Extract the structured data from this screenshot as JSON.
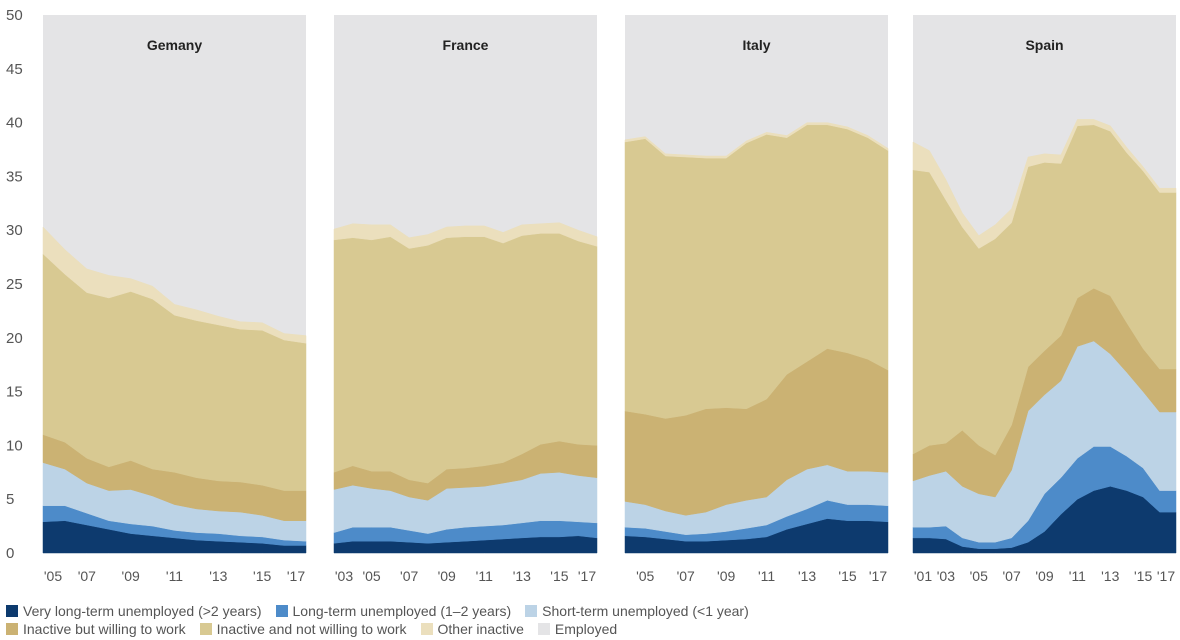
{
  "chart_data": {
    "type": "area",
    "stacked": true,
    "ylim": [
      0,
      50
    ],
    "yticks": [
      0,
      5,
      10,
      15,
      20,
      25,
      30,
      35,
      40,
      45,
      50
    ],
    "colors": {
      "very_long_term_unemployed": "#0d3a6e",
      "long_term_unemployed": "#4d8bc9",
      "short_term_unemployed": "#bcd3e6",
      "inactive_willing": "#cbb273",
      "inactive_not_willing": "#d8c992",
      "other_inactive": "#ebdfbd",
      "employed": "#e4e4e6"
    },
    "legend": [
      {
        "key": "very_long_term_unemployed",
        "label": "Very long-term unemployed (>2 years)"
      },
      {
        "key": "long_term_unemployed",
        "label": "Long-term unemployed (1–2 years)"
      },
      {
        "key": "short_term_unemployed",
        "label": "Short-term unemployed (<1 year)"
      },
      {
        "key": "inactive_willing",
        "label": "Inactive but willing to work"
      },
      {
        "key": "inactive_not_willing",
        "label": "Inactive and not willing to work"
      },
      {
        "key": "other_inactive",
        "label": "Other inactive"
      },
      {
        "key": "employed",
        "label": "Employed"
      }
    ],
    "panels": [
      {
        "title": "Gemany",
        "x": [
          2005,
          2006,
          2007,
          2008,
          2009,
          2010,
          2011,
          2012,
          2013,
          2014,
          2015,
          2016,
          2017
        ],
        "xtick_labels": [
          "'05",
          "'07",
          "'09",
          "'11",
          "'13",
          "'15",
          "'17"
        ],
        "xtick_values": [
          2005,
          2007,
          2009,
          2011,
          2013,
          2015,
          2017
        ],
        "series": {
          "very_long_term_unemployed": [
            2.9,
            3.0,
            2.6,
            2.2,
            1.8,
            1.6,
            1.4,
            1.2,
            1.1,
            1.0,
            0.9,
            0.7,
            0.7
          ],
          "long_term_unemployed": [
            1.5,
            1.4,
            1.1,
            0.8,
            0.9,
            0.9,
            0.7,
            0.7,
            0.7,
            0.6,
            0.6,
            0.5,
            0.4
          ],
          "short_term_unemployed": [
            4.0,
            3.4,
            2.8,
            2.8,
            3.2,
            2.8,
            2.4,
            2.2,
            2.1,
            2.2,
            2.0,
            1.8,
            1.9
          ],
          "inactive_willing": [
            2.6,
            2.5,
            2.3,
            2.2,
            2.7,
            2.5,
            3.0,
            2.9,
            2.8,
            2.8,
            2.8,
            2.8,
            2.8
          ],
          "inactive_not_willing": [
            16.8,
            15.6,
            15.4,
            15.7,
            15.7,
            15.8,
            14.6,
            14.6,
            14.5,
            14.2,
            14.4,
            14.0,
            13.7
          ],
          "other_inactive": [
            2.5,
            2.3,
            2.2,
            2.1,
            1.2,
            1.2,
            1.0,
            1.0,
            0.8,
            0.7,
            0.7,
            0.6,
            0.7
          ]
        }
      },
      {
        "title": "France",
        "x": [
          2003,
          2004,
          2005,
          2006,
          2007,
          2008,
          2009,
          2010,
          2011,
          2012,
          2013,
          2014,
          2015,
          2016,
          2017
        ],
        "xtick_labels": [
          "'03",
          "'05",
          "'07",
          "'09",
          "'11",
          "'13",
          "'15",
          "'17"
        ],
        "xtick_values": [
          2003,
          2005,
          2007,
          2009,
          2011,
          2013,
          2015,
          2017
        ],
        "series": {
          "very_long_term_unemployed": [
            0.9,
            1.1,
            1.1,
            1.1,
            1.0,
            0.9,
            1.0,
            1.1,
            1.2,
            1.3,
            1.4,
            1.5,
            1.5,
            1.6,
            1.4
          ],
          "long_term_unemployed": [
            1.0,
            1.3,
            1.3,
            1.3,
            1.1,
            0.9,
            1.2,
            1.3,
            1.3,
            1.3,
            1.4,
            1.5,
            1.5,
            1.3,
            1.4
          ],
          "short_term_unemployed": [
            4.0,
            3.9,
            3.6,
            3.4,
            3.1,
            3.1,
            3.8,
            3.7,
            3.7,
            3.9,
            4.0,
            4.4,
            4.5,
            4.3,
            4.2
          ],
          "inactive_willing": [
            1.6,
            1.8,
            1.6,
            1.8,
            1.6,
            1.6,
            1.8,
            1.8,
            1.9,
            1.9,
            2.4,
            2.7,
            2.9,
            2.9,
            3.0
          ],
          "inactive_not_willing": [
            21.6,
            21.2,
            21.5,
            21.8,
            21.5,
            22.1,
            21.5,
            21.5,
            21.3,
            20.4,
            20.3,
            19.6,
            19.3,
            18.9,
            18.5
          ],
          "other_inactive": [
            1.0,
            1.3,
            1.4,
            1.1,
            1.0,
            1.0,
            1.0,
            1.0,
            1.0,
            1.0,
            1.0,
            0.9,
            1.0,
            1.0,
            0.9
          ]
        }
      },
      {
        "title": "Italy",
        "x": [
          2004,
          2005,
          2006,
          2007,
          2008,
          2009,
          2010,
          2011,
          2012,
          2013,
          2014,
          2015,
          2016,
          2017
        ],
        "xtick_labels": [
          "'05",
          "'07",
          "'09",
          "'11",
          "'13",
          "'15",
          "'17"
        ],
        "xtick_values": [
          2005,
          2007,
          2009,
          2011,
          2013,
          2015,
          2017
        ],
        "series": {
          "very_long_term_unemployed": [
            1.6,
            1.5,
            1.3,
            1.1,
            1.1,
            1.2,
            1.3,
            1.5,
            2.2,
            2.7,
            3.2,
            3.0,
            3.0,
            2.9
          ],
          "long_term_unemployed": [
            0.8,
            0.8,
            0.7,
            0.6,
            0.7,
            0.8,
            1.0,
            1.1,
            1.2,
            1.4,
            1.7,
            1.5,
            1.5,
            1.5
          ],
          "short_term_unemployed": [
            2.4,
            2.2,
            1.9,
            1.8,
            2.0,
            2.5,
            2.6,
            2.6,
            3.4,
            3.7,
            3.3,
            3.1,
            3.1,
            3.1
          ],
          "inactive_willing": [
            8.4,
            8.4,
            8.6,
            9.3,
            9.6,
            9.0,
            8.5,
            9.1,
            9.8,
            10.0,
            10.8,
            11.0,
            10.4,
            9.5
          ],
          "inactive_not_willing": [
            25.0,
            25.6,
            24.4,
            24.0,
            23.3,
            23.2,
            24.7,
            24.6,
            22.0,
            22.0,
            20.8,
            20.8,
            20.6,
            20.4
          ],
          "other_inactive": [
            0.2,
            0.2,
            0.2,
            0.2,
            0.2,
            0.2,
            0.2,
            0.2,
            0.2,
            0.2,
            0.2,
            0.2,
            0.2,
            0.2
          ]
        }
      },
      {
        "title": "Spain",
        "x": [
          2001,
          2002,
          2003,
          2004,
          2005,
          2006,
          2007,
          2008,
          2009,
          2010,
          2011,
          2012,
          2013,
          2014,
          2015,
          2016,
          2017
        ],
        "xtick_labels": [
          "'01",
          "'03",
          "'05",
          "'07",
          "'09",
          "'11",
          "'13",
          "'15",
          "'17"
        ],
        "xtick_values": [
          2001,
          2003,
          2005,
          2007,
          2009,
          2011,
          2013,
          2015,
          2017
        ],
        "series": {
          "very_long_term_unemployed": [
            1.4,
            1.4,
            1.3,
            0.6,
            0.4,
            0.4,
            0.5,
            1.0,
            2.0,
            3.6,
            5.0,
            5.8,
            6.2,
            5.8,
            5.2,
            3.8,
            3.8
          ],
          "long_term_unemployed": [
            1.0,
            1.0,
            1.2,
            0.8,
            0.6,
            0.6,
            0.9,
            2.0,
            3.5,
            3.4,
            3.8,
            4.1,
            3.7,
            3.2,
            2.7,
            2.0,
            2.0
          ],
          "short_term_unemployed": [
            4.3,
            4.8,
            5.1,
            4.8,
            4.5,
            4.2,
            6.3,
            10.2,
            9.2,
            9.0,
            10.4,
            9.8,
            8.6,
            7.8,
            7.1,
            7.3,
            7.3
          ],
          "inactive_willing": [
            2.5,
            2.8,
            2.6,
            5.2,
            4.5,
            3.9,
            4.2,
            4.1,
            4.1,
            4.2,
            4.5,
            4.9,
            5.4,
            4.6,
            4.0,
            4.0,
            4.0
          ],
          "inactive_not_willing": [
            26.4,
            25.4,
            22.6,
            18.9,
            18.3,
            20.1,
            18.8,
            18.6,
            17.5,
            16.0,
            16.0,
            15.2,
            15.3,
            15.8,
            16.5,
            16.4,
            16.4
          ],
          "other_inactive": [
            2.6,
            2.0,
            1.9,
            1.3,
            1.2,
            1.3,
            1.3,
            0.9,
            0.8,
            0.8,
            0.6,
            0.5,
            0.5,
            0.5,
            0.4,
            0.4,
            0.4
          ]
        }
      }
    ]
  }
}
